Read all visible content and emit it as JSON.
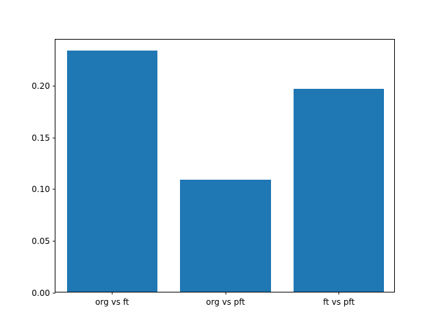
{
  "chart_data": {
    "type": "bar",
    "categories": [
      "org vs ft",
      "org vs pft",
      "ft vs pft"
    ],
    "values": [
      0.233,
      0.108,
      0.196
    ],
    "title": "",
    "xlabel": "",
    "ylabel": "",
    "ylim": [
      0,
      0.2447
    ],
    "yticks": [
      0.0,
      0.05,
      0.1,
      0.15,
      0.2
    ],
    "ytick_labels": [
      "0.00",
      "0.05",
      "0.10",
      "0.15",
      "0.20"
    ],
    "bar_width_fraction": 0.8,
    "grid": false,
    "legend": "none",
    "bar_color": "#1f77b4",
    "axes_color": "#000000",
    "background_color": "#ffffff"
  }
}
